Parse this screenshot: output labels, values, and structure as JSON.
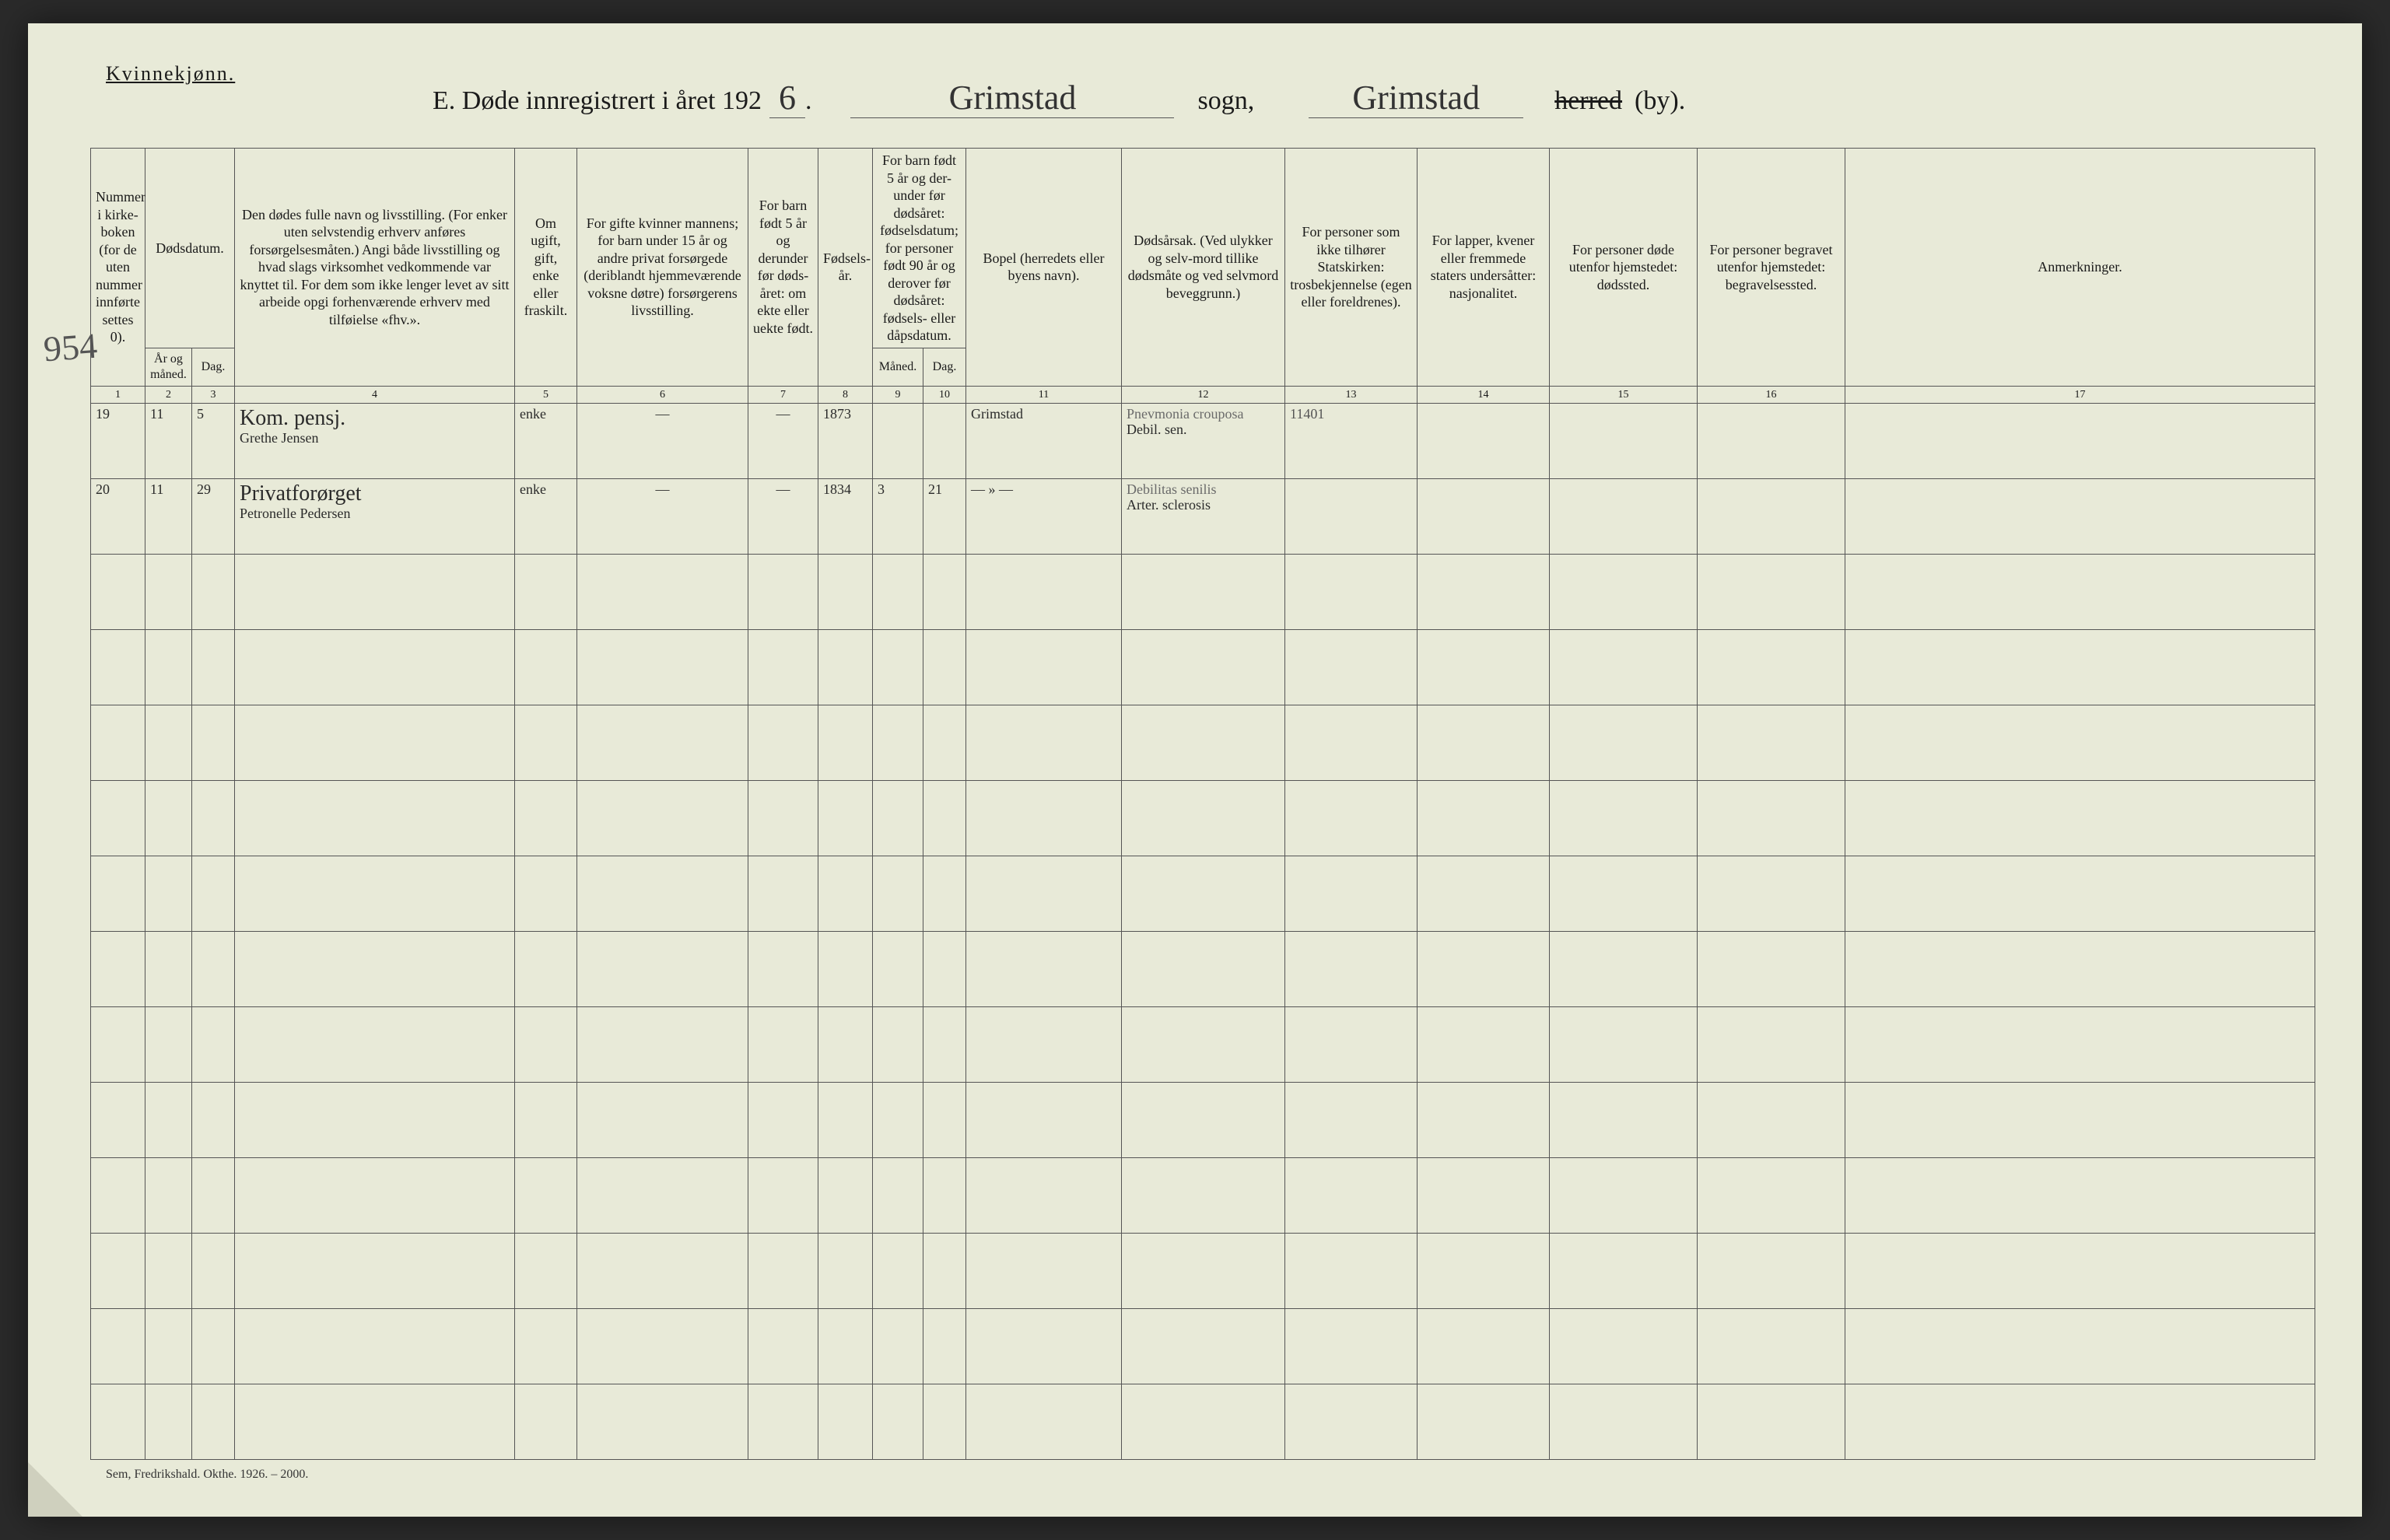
{
  "page": {
    "gender_label": "Kvinnekjønn.",
    "title_prefix": "E.   Døde innregistrert i året 192",
    "year_suffix": "6",
    "sogn_word": "sogn,",
    "sogn_value": "Grimstad",
    "herred_value": "Grimstad",
    "herred_struck": "herred",
    "by_suffix": "(by).",
    "footer": "Sem, Fredrikshald. Okthe. 1926. – 2000.",
    "margin_note": "954"
  },
  "columns": {
    "c1": "Nummer i kirke-boken (for de uten nummer innførte settes 0).",
    "c2_top": "Dødsdatum.",
    "c2a": "År og måned.",
    "c2b": "Dag.",
    "c4": "Den dødes fulle navn og livsstilling. (For enker uten selvstendig erhverv anføres forsørgelsesmåten.) Angi både livsstilling og hvad slags virksomhet vedkommende var knyttet til. For dem som ikke lenger levet av sitt arbeide opgi forhenværende erhverv med tilføielse «fhv.».",
    "c5": "Om ugift, gift, enke eller fraskilt.",
    "c6": "For gifte kvinner mannens; for barn under 15 år og andre privat forsørgede (deriblandt hjemmeværende voksne døtre) forsørgerens livsstilling.",
    "c7": "For barn født 5 år og derunder før døds-året: om ekte eller uekte født.",
    "c8": "Fødsels-år.",
    "c9_top": "For barn født 5 år og der-under før dødsåret: fødselsdatum; for personer født 90 år og derover før dødsåret: fødsels- eller dåpsdatum.",
    "c9a": "Måned.",
    "c9b": "Dag.",
    "c11": "Bopel (herredets eller byens navn).",
    "c12": "Dødsårsak. (Ved ulykker og selv-mord tillike dødsmåte og ved selvmord beveggrunn.)",
    "c13": "For personer som ikke tilhører Statskirken: trosbekjennelse (egen eller foreldrenes).",
    "c14": "For lapper, kvener eller fremmede staters undersåtter: nasjonalitet.",
    "c15": "For personer døde utenfor hjemstedet: dødssted.",
    "c16": "For personer begravet utenfor hjemstedet: begravelsessted.",
    "c17": "Anmerkninger.",
    "nums": [
      "1",
      "2",
      "3",
      "4",
      "5",
      "6",
      "7",
      "8",
      "9",
      "10",
      "11",
      "12",
      "13",
      "14",
      "15",
      "16",
      "17"
    ]
  },
  "rows": [
    {
      "num": "19",
      "aar_mnd": "11",
      "dag": "5",
      "navn_top": "Kom. pensj.",
      "navn": "Grethe Jensen",
      "sivil": "enke",
      "forsorger": "—",
      "ekte": "—",
      "faar": "1873",
      "fmnd": "",
      "fdag": "",
      "bopel": "Grimstad",
      "dodsarsak_top": "Pnevmonia crouposa",
      "dodsarsak": "Debil. sen.",
      "tros": "11401",
      "nasj": "",
      "dodssted": "",
      "begrav": "",
      "anm": ""
    },
    {
      "num": "20",
      "aar_mnd": "11",
      "dag": "29",
      "navn_top": "Privatforørget",
      "navn": "Petronelle Pedersen",
      "sivil": "enke",
      "forsorger": "—",
      "ekte": "—",
      "faar": "1834",
      "fmnd": "3",
      "fdag": "21",
      "bopel": "— » —",
      "dodsarsak_top": "Debilitas senilis",
      "dodsarsak": "Arter. sclerosis",
      "tros": "",
      "nasj": "",
      "dodssted": "",
      "begrav": "",
      "anm": ""
    }
  ],
  "empty_row_count": 12
}
